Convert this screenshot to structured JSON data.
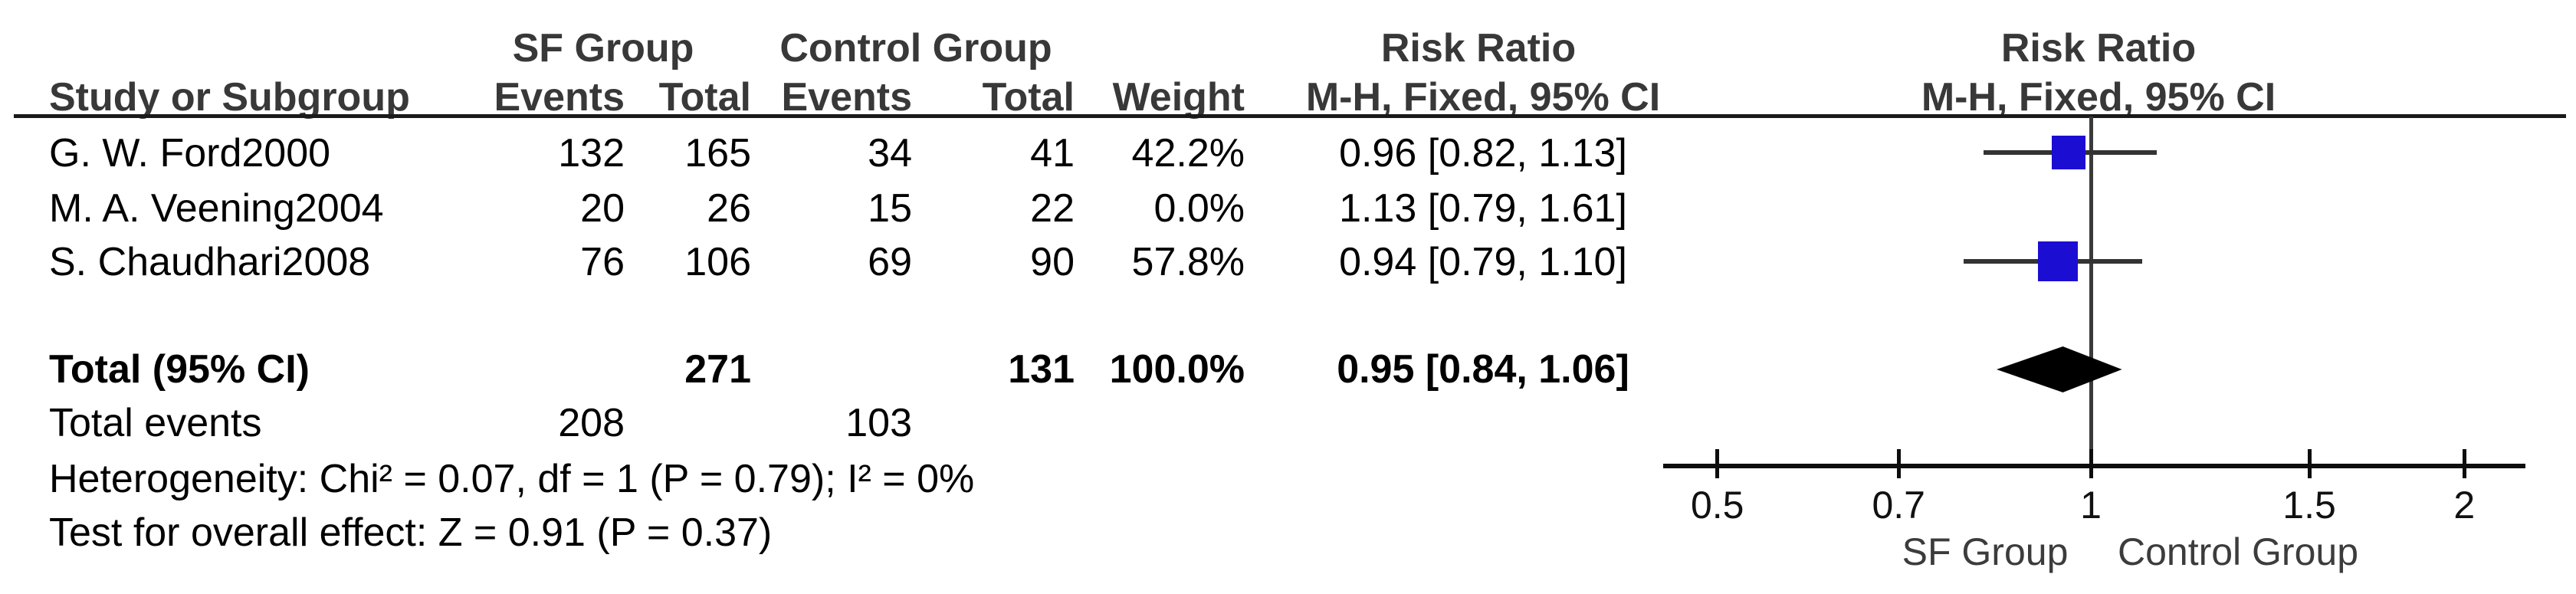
{
  "table": {
    "group1_header": "SF Group",
    "group2_header": "Control Group",
    "effect_header": "Risk Ratio",
    "plot_effect_header": "Risk Ratio",
    "method_header": "M-H, Fixed, 95% CI",
    "col_headers": {
      "study": "Study or Subgroup",
      "events": "Events",
      "total": "Total",
      "weight": "Weight"
    },
    "rows": [
      {
        "study": "G. W. Ford2000",
        "sf_events": "132",
        "sf_total": "165",
        "ctrl_events": "34",
        "ctrl_total": "41",
        "weight": "42.2%",
        "ci": "0.96 [0.82, 1.13]"
      },
      {
        "study": "M. A. Veening2004",
        "sf_events": "20",
        "sf_total": "26",
        "ctrl_events": "15",
        "ctrl_total": "22",
        "weight": "0.0%",
        "ci": "1.13 [0.79, 1.61]"
      },
      {
        "study": "S. Chaudhari2008",
        "sf_events": "76",
        "sf_total": "106",
        "ctrl_events": "69",
        "ctrl_total": "90",
        "weight": "57.8%",
        "ci": "0.94 [0.79, 1.10]"
      }
    ],
    "total_row": {
      "label": "Total (95% CI)",
      "sf_total": "271",
      "ctrl_total": "131",
      "weight": "100.0%",
      "ci": "0.95 [0.84, 1.06]"
    },
    "total_events_row": {
      "label": "Total events",
      "sf_events": "208",
      "ctrl_events": "103"
    },
    "heterogeneity": "Heterogeneity: Chi² = 0.07, df = 1 (P = 0.79); I² = 0%",
    "overall_effect": "Test for overall effect: Z = 0.91 (P = 0.37)"
  },
  "chart_data": {
    "type": "forest",
    "scale": "log",
    "effect_measure": "Risk Ratio",
    "method": "M-H, Fixed, 95% CI",
    "axis_ticks": [
      0.5,
      0.7,
      1,
      1.5,
      2
    ],
    "axis_range": [
      0.45,
      2.24
    ],
    "x_label_left": "SF Group",
    "x_label_right": "Control Group",
    "marker_color": "#1c0dd2",
    "diamond_color": "#000000",
    "studies": [
      {
        "name": "G. W. Ford2000",
        "rr": 0.96,
        "ci_low": 0.82,
        "ci_high": 1.13,
        "weight_pct": 42.2
      },
      {
        "name": "M. A. Veening2004",
        "rr": 1.13,
        "ci_low": 0.79,
        "ci_high": 1.61,
        "weight_pct": 0.0
      },
      {
        "name": "S. Chaudhari2008",
        "rr": 0.94,
        "ci_low": 0.79,
        "ci_high": 1.1,
        "weight_pct": 57.8
      }
    ],
    "total": {
      "rr": 0.95,
      "ci_low": 0.84,
      "ci_high": 1.06
    }
  }
}
